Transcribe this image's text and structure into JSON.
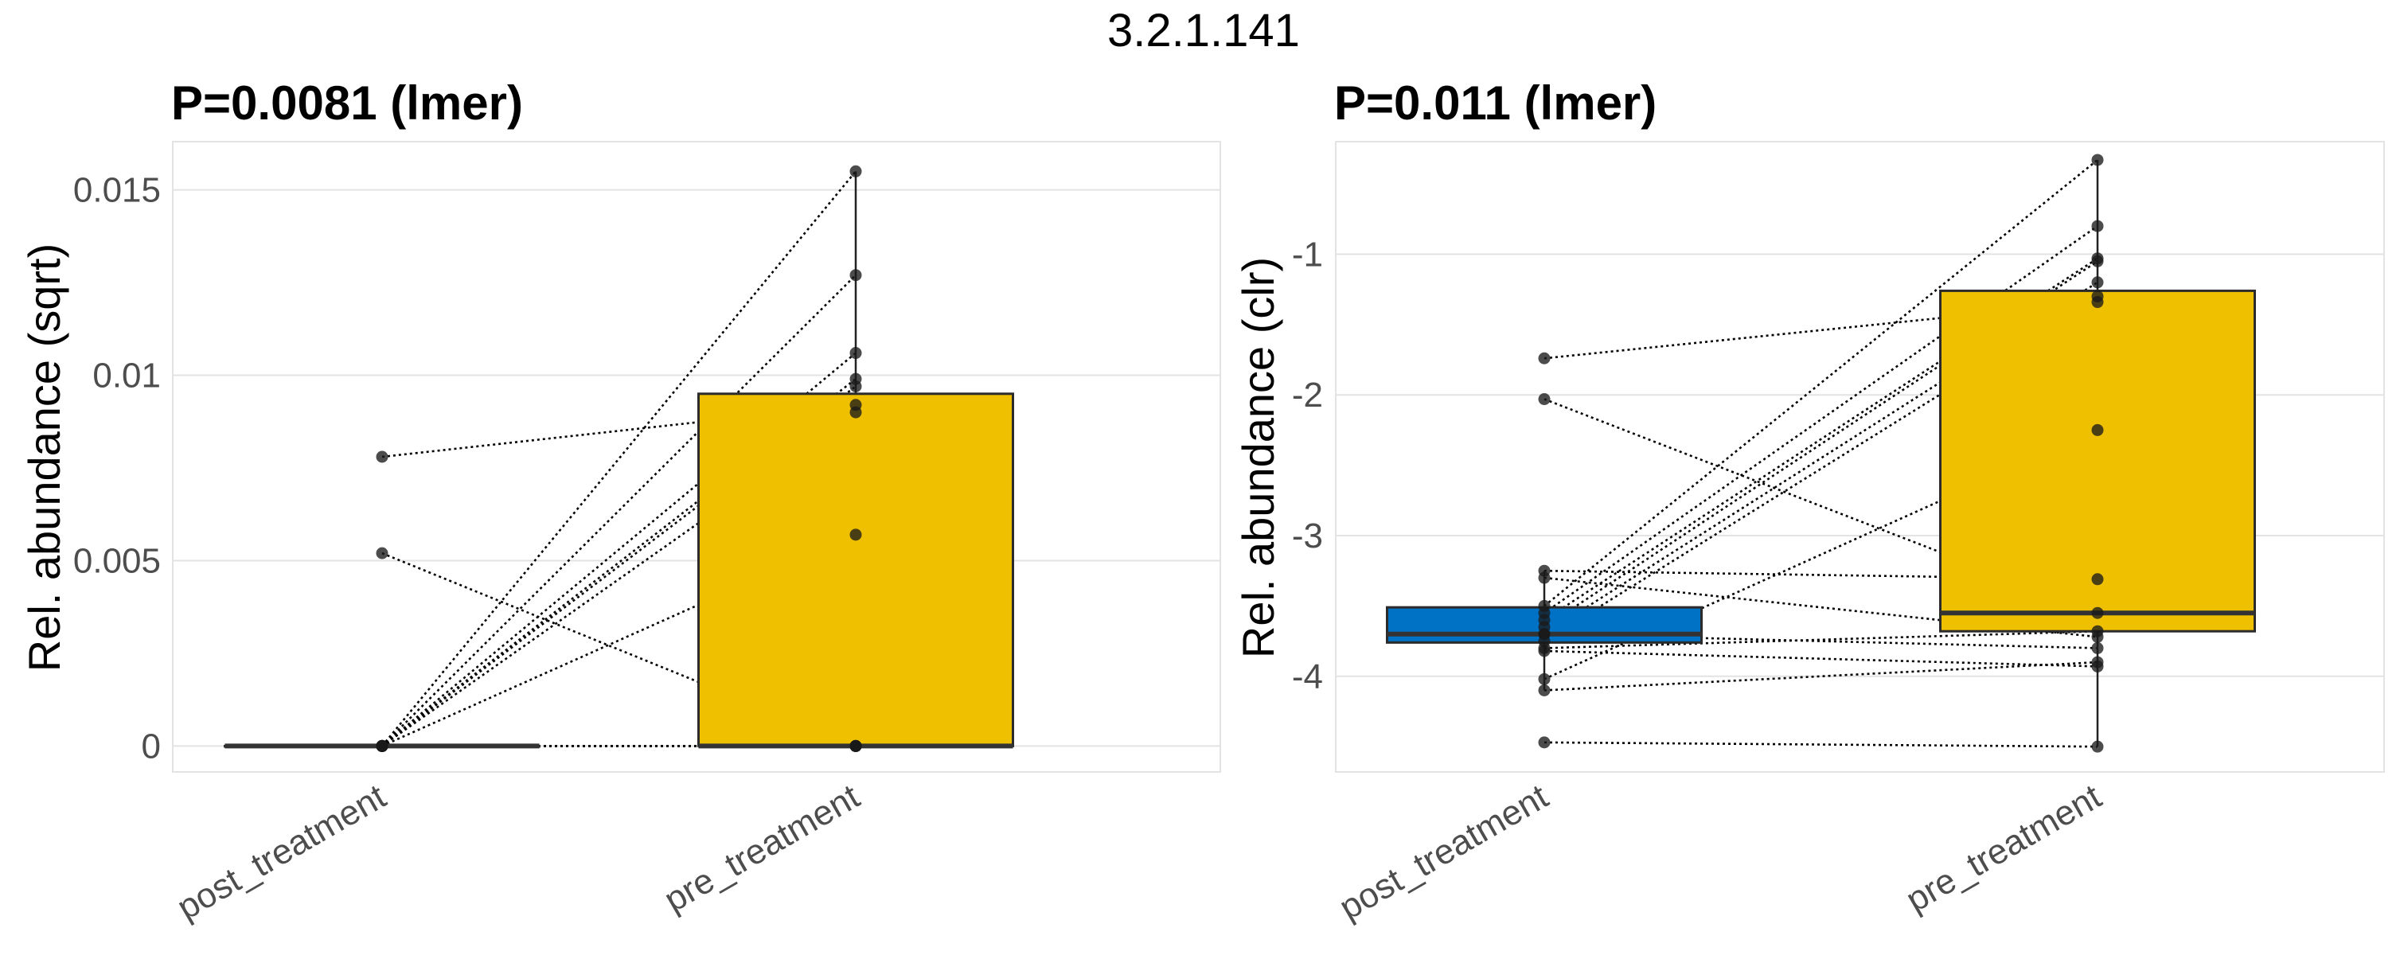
{
  "figure_title": "3.2.1.141",
  "chart_data": [
    {
      "type": "boxplot",
      "title": "P=0.0081 (lmer)",
      "ylabel": "Rel. abundance (sqrt)",
      "xlabel": "",
      "categories": [
        "post_treatment",
        "pre_treatment"
      ],
      "ylim": [
        -0.0007,
        0.0163
      ],
      "yticks": [
        0,
        0.005,
        0.01,
        0.015
      ],
      "ytick_labels": [
        "0",
        "0.005",
        "0.01",
        "0.015"
      ],
      "grid": true,
      "box_colors": [
        "#0072C6",
        "#EFC000"
      ],
      "boxes": [
        {
          "category": "post_treatment",
          "q1": 0,
          "median": 0,
          "q3": 0,
          "whisker_low": 0,
          "whisker_high": 0
        },
        {
          "category": "pre_treatment",
          "q1": 0,
          "median": 0,
          "q3": 0.0095,
          "whisker_low": 0,
          "whisker_high": 0.0155
        }
      ],
      "paired_points": [
        {
          "post": 0.0078,
          "pre": 0.0092
        },
        {
          "post": 0.0052,
          "pre": 0
        },
        {
          "post": 0,
          "pre": 0.0155
        },
        {
          "post": 0,
          "pre": 0.0127
        },
        {
          "post": 0,
          "pre": 0.0106
        },
        {
          "post": 0,
          "pre": 0.0099
        },
        {
          "post": 0,
          "pre": 0.0097
        },
        {
          "post": 0,
          "pre": 0.009
        },
        {
          "post": 0,
          "pre": 0.0057
        },
        {
          "post": 0,
          "pre": 0
        },
        {
          "post": 0,
          "pre": 0
        },
        {
          "post": 0,
          "pre": 0
        },
        {
          "post": 0,
          "pre": 0
        },
        {
          "post": 0,
          "pre": 0
        }
      ]
    },
    {
      "type": "boxplot",
      "title": "P=0.011 (lmer)",
      "ylabel": "Rel. abundance (clr)",
      "xlabel": "",
      "categories": [
        "post_treatment",
        "pre_treatment"
      ],
      "ylim": [
        -4.68,
        -0.2
      ],
      "yticks": [
        -4,
        -3,
        -2,
        -1
      ],
      "ytick_labels": [
        "-4",
        "-3",
        "-2",
        "-1"
      ],
      "grid": true,
      "box_colors": [
        "#0072C6",
        "#EFC000"
      ],
      "boxes": [
        {
          "category": "post_treatment",
          "q1": -3.76,
          "median": -3.7,
          "q3": -3.51,
          "whisker_low": -4.1,
          "whisker_high": -3.25
        },
        {
          "category": "pre_treatment",
          "q1": -3.68,
          "median": -3.55,
          "q3": -1.26,
          "whisker_low": -4.5,
          "whisker_high": -0.33
        }
      ],
      "paired_points": [
        {
          "post": -1.74,
          "pre": -1.34
        },
        {
          "post": -2.03,
          "pre": -3.55
        },
        {
          "post": -3.25,
          "pre": -3.31
        },
        {
          "post": -3.3,
          "pre": -3.72
        },
        {
          "post": -3.5,
          "pre": -0.33
        },
        {
          "post": -3.55,
          "pre": -0.8
        },
        {
          "post": -3.6,
          "pre": -1.03
        },
        {
          "post": -3.65,
          "pre": -1.05
        },
        {
          "post": -3.7,
          "pre": -1.2
        },
        {
          "post": -3.75,
          "pre": -1.3
        },
        {
          "post": -3.8,
          "pre": -3.68
        },
        {
          "post": -3.7,
          "pre": -3.8
        },
        {
          "post": -4.02,
          "pre": -2.25
        },
        {
          "post": -4.1,
          "pre": -3.9
        },
        {
          "post": -3.82,
          "pre": -3.93
        },
        {
          "post": -4.47,
          "pre": -4.5
        }
      ]
    }
  ]
}
